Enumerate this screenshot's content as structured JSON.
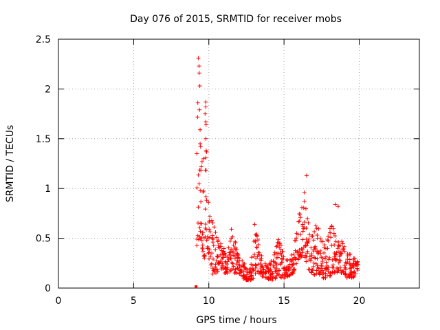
{
  "chart_data": {
    "type": "scatter",
    "title": "Day 076 of 2015, SRMTID for receiver mobs",
    "xlabel": "GPS time / hours",
    "ylabel": "SRMTID / TECUs",
    "xlim": [
      0,
      24
    ],
    "ylim": [
      0,
      2.5
    ],
    "xticks": [
      0,
      5,
      10,
      15,
      20
    ],
    "yticks": [
      0,
      0.5,
      1,
      1.5,
      2,
      2.5
    ],
    "xtick_labels": [
      "0",
      "5",
      "10",
      "15",
      "20"
    ],
    "ytick_labels": [
      "0",
      "0.5",
      "1",
      "1.5",
      "2",
      "2.5"
    ],
    "grid": true,
    "marker": "+",
    "color": "#ff0000",
    "x_start_marker": 9.15,
    "series": [
      {
        "name": "SRMTID",
        "envelope": [
          [
            9.2,
            0.4,
            1.35
          ],
          [
            9.3,
            0.45,
            2.3
          ],
          [
            9.4,
            0.5,
            1.6
          ],
          [
            9.5,
            0.5,
            1.25
          ],
          [
            9.6,
            0.35,
            1.25
          ],
          [
            9.7,
            0.3,
            1.75
          ],
          [
            9.8,
            0.35,
            1.85
          ],
          [
            9.9,
            0.4,
            1.2
          ],
          [
            10.0,
            0.3,
            0.9
          ],
          [
            10.2,
            0.2,
            0.8
          ],
          [
            10.4,
            0.15,
            0.6
          ],
          [
            10.6,
            0.15,
            0.5
          ],
          [
            10.8,
            0.2,
            0.45
          ],
          [
            11.0,
            0.15,
            0.4
          ],
          [
            11.2,
            0.15,
            0.35
          ],
          [
            11.5,
            0.15,
            0.6
          ],
          [
            11.8,
            0.15,
            0.45
          ],
          [
            12.0,
            0.15,
            0.3
          ],
          [
            12.2,
            0.1,
            0.3
          ],
          [
            12.5,
            0.08,
            0.2
          ],
          [
            12.8,
            0.08,
            0.25
          ],
          [
            13.0,
            0.1,
            0.65
          ],
          [
            13.2,
            0.15,
            0.55
          ],
          [
            13.5,
            0.12,
            0.35
          ],
          [
            13.8,
            0.1,
            0.25
          ],
          [
            14.0,
            0.08,
            0.25
          ],
          [
            14.3,
            0.08,
            0.3
          ],
          [
            14.6,
            0.1,
            0.55
          ],
          [
            14.8,
            0.1,
            0.45
          ],
          [
            15.0,
            0.1,
            0.35
          ],
          [
            15.3,
            0.12,
            0.3
          ],
          [
            15.6,
            0.15,
            0.4
          ],
          [
            15.9,
            0.25,
            0.65
          ],
          [
            16.1,
            0.3,
            0.85
          ],
          [
            16.3,
            0.35,
            0.9
          ],
          [
            16.5,
            0.25,
            0.8
          ],
          [
            16.7,
            0.15,
            0.6
          ],
          [
            16.9,
            0.15,
            0.55
          ],
          [
            17.1,
            0.12,
            0.7
          ],
          [
            17.3,
            0.15,
            0.65
          ],
          [
            17.5,
            0.1,
            0.5
          ],
          [
            17.8,
            0.1,
            0.45
          ],
          [
            18.0,
            0.1,
            0.6
          ],
          [
            18.2,
            0.15,
            0.7
          ],
          [
            18.4,
            0.15,
            0.55
          ],
          [
            18.6,
            0.15,
            0.5
          ],
          [
            18.8,
            0.15,
            0.55
          ],
          [
            19.0,
            0.15,
            0.45
          ],
          [
            19.2,
            0.1,
            0.35
          ],
          [
            19.4,
            0.1,
            0.35
          ],
          [
            19.6,
            0.1,
            0.3
          ],
          [
            19.8,
            0.15,
            0.3
          ],
          [
            19.95,
            0.15,
            0.3
          ]
        ],
        "points": [
          [
            9.3,
            2.31
          ],
          [
            9.35,
            2.23
          ],
          [
            9.36,
            2.16
          ],
          [
            9.4,
            2.03
          ],
          [
            9.38,
            1.79
          ],
          [
            9.8,
            1.87
          ],
          [
            9.8,
            1.82
          ],
          [
            9.75,
            1.75
          ],
          [
            9.8,
            1.67
          ],
          [
            9.82,
            1.64
          ],
          [
            9.42,
            1.59
          ],
          [
            9.8,
            1.5
          ],
          [
            9.45,
            1.42
          ],
          [
            9.82,
            1.38
          ],
          [
            9.2,
            1.35
          ],
          [
            9.65,
            1.3
          ],
          [
            9.55,
            1.27
          ],
          [
            9.5,
            1.22
          ],
          [
            16.5,
            1.13
          ],
          [
            16.35,
            0.96
          ],
          [
            18.4,
            0.84
          ],
          [
            18.6,
            0.82
          ],
          [
            9.7,
            0.3
          ],
          [
            10.25,
            0.14
          ],
          [
            13.05,
            0.64
          ]
        ]
      }
    ]
  }
}
